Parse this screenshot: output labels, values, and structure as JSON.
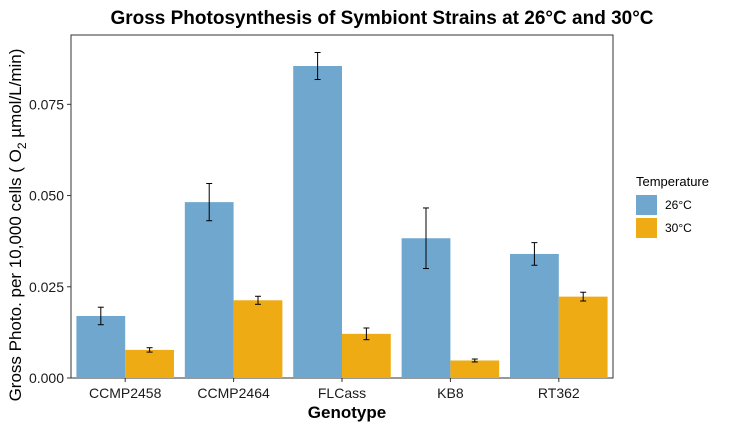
{
  "chart_data": {
    "type": "bar",
    "title": "Gross Photosynthesis of Symbiont Strains at 26°C and 30°C",
    "xlabel": "Genotype",
    "ylabel_main": "Gross Photo. per 10,000 cells ( O",
    "ylabel_sub": "2",
    "ylabel_tail": " µmol/L/min)",
    "categories": [
      "CCMP2458",
      "CCMP2464",
      "FLCass",
      "KB8",
      "RT362"
    ],
    "series": [
      {
        "name": "26°C",
        "color": "#6fa7cf",
        "values": [
          0.017,
          0.0482,
          0.0855,
          0.0383,
          0.034
        ],
        "errors": [
          0.0024,
          0.0051,
          0.0037,
          0.0083,
          0.0031
        ]
      },
      {
        "name": "30°C",
        "color": "#eeab13",
        "values": [
          0.0077,
          0.0213,
          0.0121,
          0.0048,
          0.0223
        ],
        "errors": [
          0.0006,
          0.0011,
          0.0016,
          0.0004,
          0.0012
        ]
      }
    ],
    "ylim": [
      0,
      0.094
    ],
    "yticks": [
      0.0,
      0.025,
      0.05,
      0.075
    ],
    "ytick_labels": [
      "0.000",
      "0.025",
      "0.050",
      "0.075"
    ],
    "grid": false,
    "legend": {
      "title": "Temperature",
      "position": "right"
    }
  }
}
